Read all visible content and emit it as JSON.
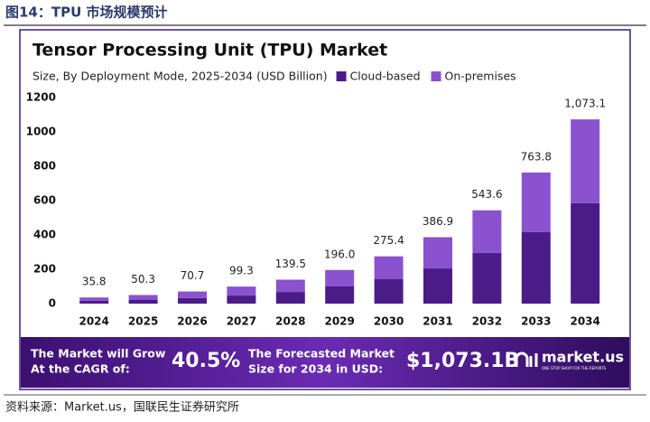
{
  "header": {
    "title": "图14：TPU 市场规模预计"
  },
  "chart_data": {
    "type": "stacked_bar",
    "title": "Tensor Processing Unit (TPU) Market",
    "subtitle": "Size, By Deployment Mode, 2025-2034 (USD Billion)",
    "categories": [
      "2024",
      "2025",
      "2026",
      "2027",
      "2028",
      "2029",
      "2030",
      "2031",
      "2032",
      "2033",
      "2034"
    ],
    "series": [
      {
        "name": "Cloud-based",
        "color": "#4b1c87",
        "values": [
          16,
          23,
          32,
          47,
          68,
          100,
          142,
          205,
          295,
          416,
          585
        ]
      },
      {
        "name": "On-premises",
        "color": "#8b52cf",
        "values": [
          19.8,
          27.3,
          38.7,
          52.3,
          71.5,
          96,
          133.4,
          181.9,
          248.6,
          347.8,
          488.1
        ]
      }
    ],
    "totals": [
      35.8,
      50.3,
      70.7,
      99.3,
      139.5,
      196.0,
      275.4,
      386.9,
      543.6,
      763.8,
      1073.1
    ],
    "total_labels": [
      "35.8",
      "50.3",
      "70.7",
      "99.3",
      "139.5",
      "196.0",
      "275.4",
      "386.9",
      "543.6",
      "763.8",
      "1,073.1"
    ],
    "ylim": [
      0,
      1200
    ],
    "yticks": [
      0,
      200,
      400,
      600,
      800,
      1000,
      1200
    ],
    "grid": false
  },
  "banner": {
    "cagr_text": [
      "The Market will Grow",
      "At the CAGR of:"
    ],
    "cagr": "40.5%",
    "forecast_text": [
      "The Forecasted Market",
      "Size for 2034 in USD:"
    ],
    "forecast": "$1,073.1B",
    "logo": "market.us",
    "tagline": "ONE STOP SHOP FOR THE REPORTS"
  },
  "source": "资料来源：Market.us，国联民生证券研究所"
}
